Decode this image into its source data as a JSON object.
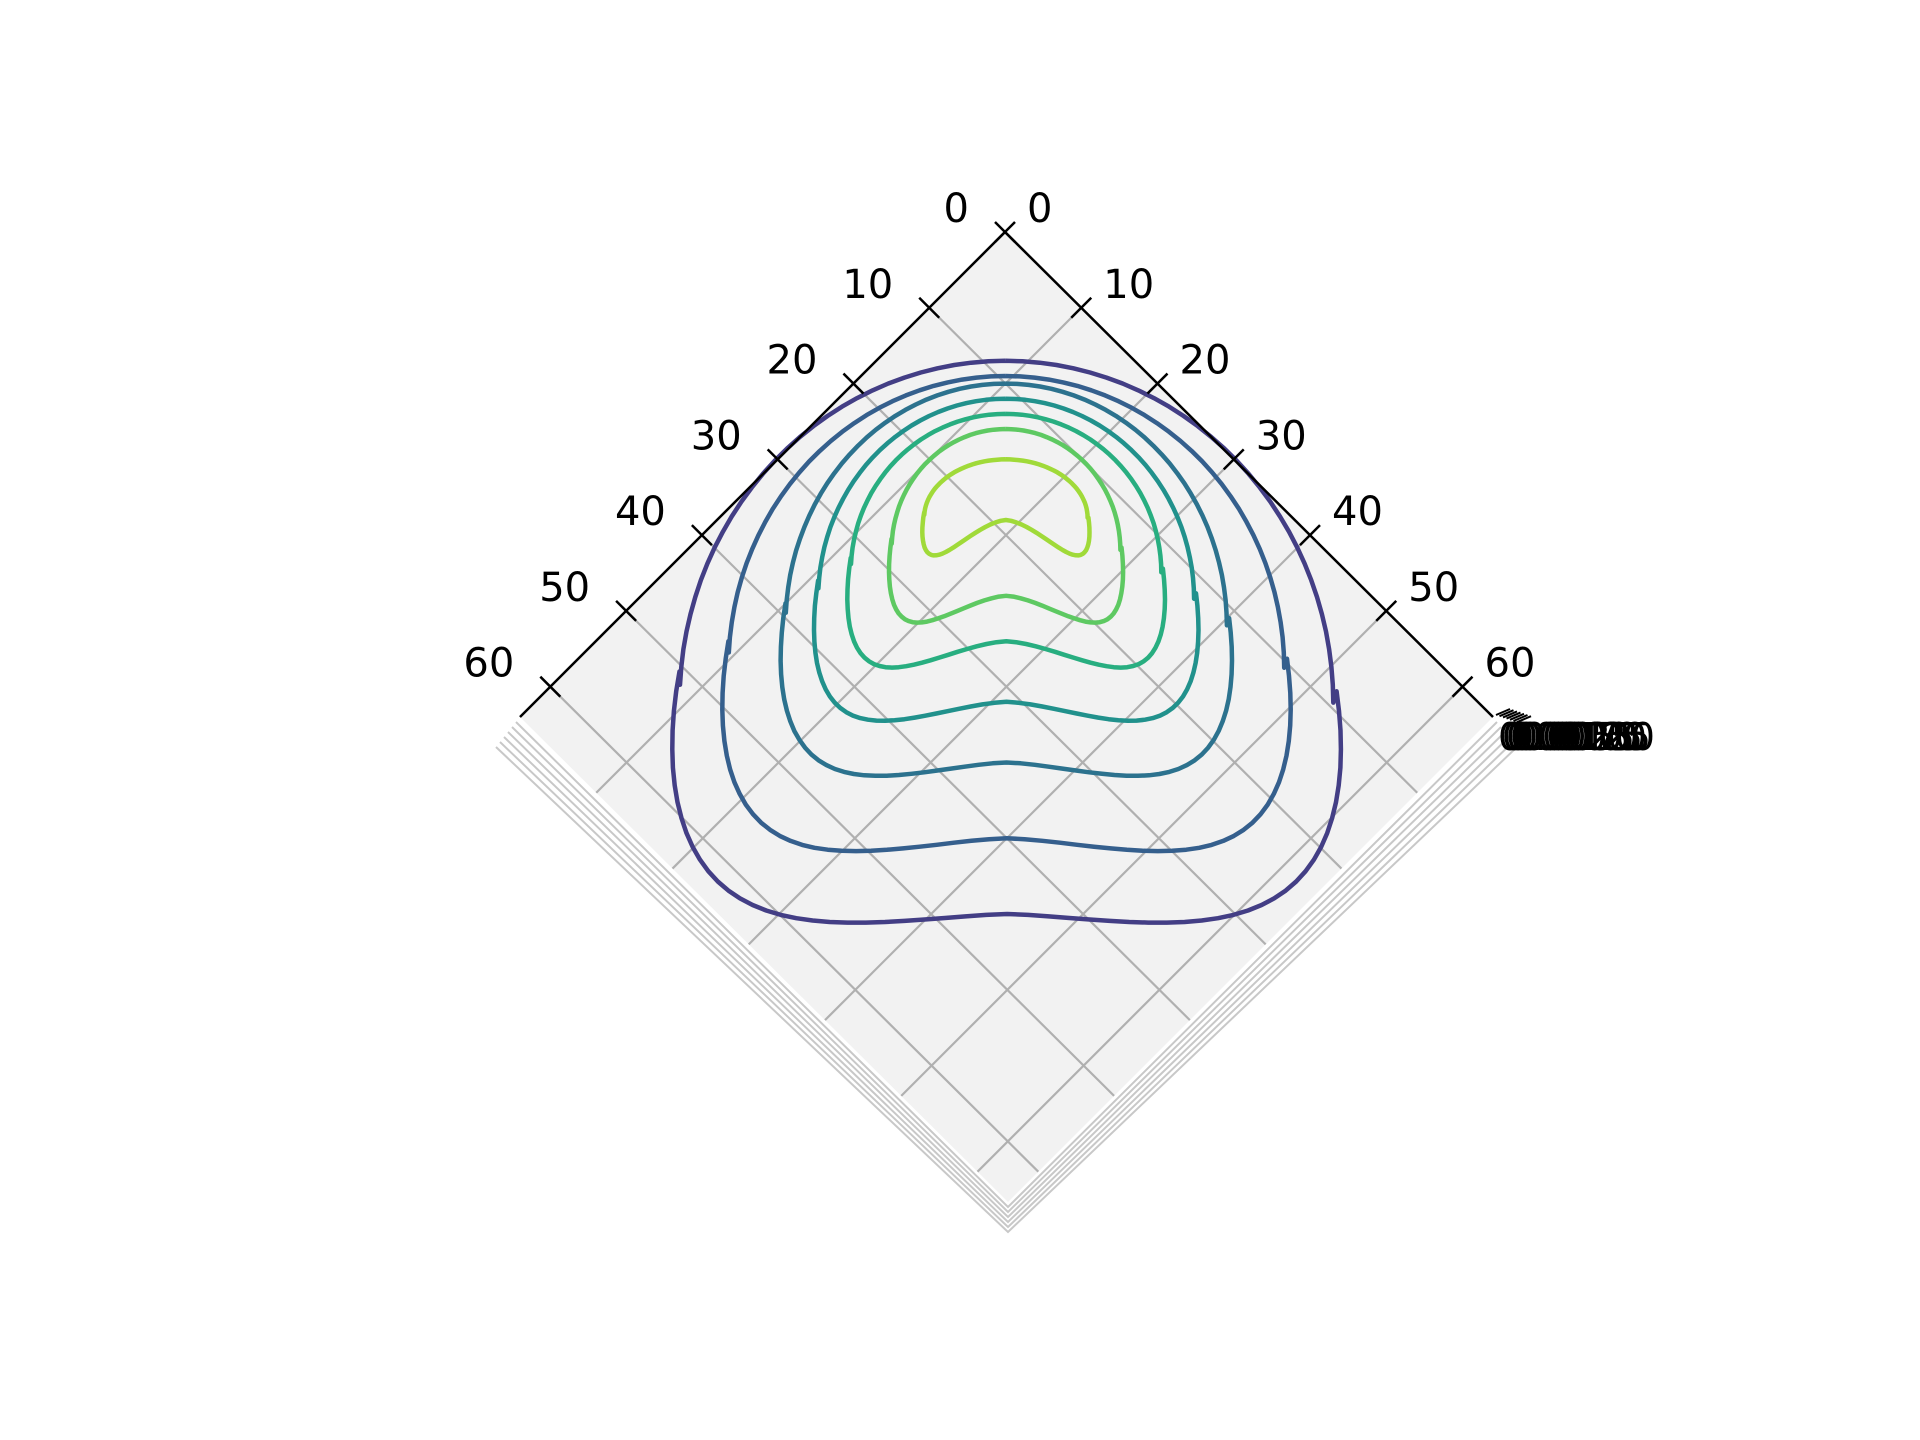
{
  "chart_data": {
    "type": "contour",
    "view": "3d-top-down",
    "title": "",
    "xlabel": "",
    "ylabel": "",
    "zlabel": "",
    "grid": true,
    "legend": "none",
    "colormap": "viridis",
    "left_axis": {
      "ticks": [
        "0",
        "10",
        "20",
        "30",
        "40",
        "50",
        "60"
      ],
      "tick_values": [
        0,
        10,
        20,
        30,
        40,
        50,
        60
      ],
      "range": [
        0,
        64
      ]
    },
    "right_axis": {
      "ticks": [
        "0",
        "10",
        "20",
        "30",
        "40",
        "50",
        "60"
      ],
      "tick_values": [
        0,
        10,
        20,
        30,
        40,
        50,
        60
      ],
      "range": [
        0,
        64
      ]
    },
    "z_axis": {
      "ticks_overlapping": [
        "0.0000",
        "0.0025",
        "0.0050",
        "0.0075",
        "0.0100",
        "0.0125",
        "0.0150"
      ]
    },
    "contour_levels": [
      {
        "level": 1,
        "color": "#433e85",
        "half_width": 20.0,
        "tip": 8.5,
        "tail": 54,
        "notch": 45
      },
      {
        "level": 2,
        "color": "#355f8d",
        "half_width": 17.0,
        "tip": 9.5,
        "tail": 49,
        "notch": 40
      },
      {
        "level": 3,
        "color": "#2c728e",
        "half_width": 13.5,
        "tip": 10.0,
        "tail": 43,
        "notch": 35
      },
      {
        "level": 4,
        "color": "#21918c",
        "half_width": 11.5,
        "tip": 11.0,
        "tail": 39,
        "notch": 31
      },
      {
        "level": 5,
        "color": "#28ae80",
        "half_width": 9.5,
        "tip": 12.0,
        "tail": 35,
        "notch": 27
      },
      {
        "level": 6,
        "color": "#5ec962",
        "half_width": 7.0,
        "tip": 13.0,
        "tail": 31,
        "notch": 24
      },
      {
        "level": 7,
        "color": "#a0da39",
        "half_width": 5.0,
        "tip": 15.0,
        "tail": 25,
        "notch": 19
      }
    ]
  }
}
